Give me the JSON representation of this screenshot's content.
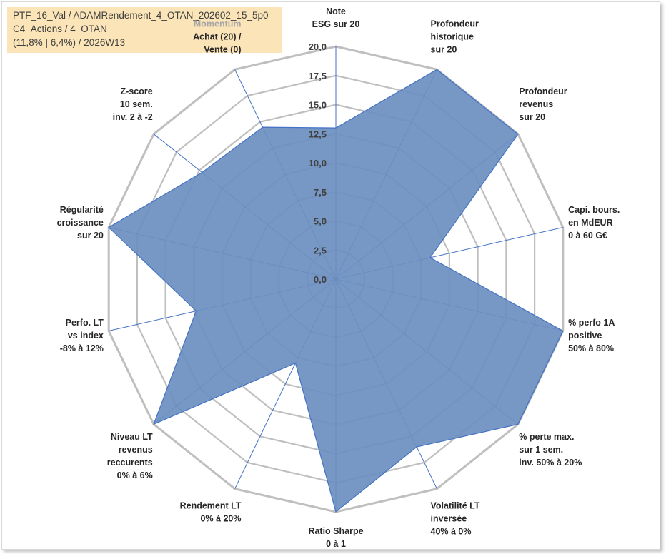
{
  "info": {
    "line1": "PTF_16_Val / ADAMRendement_4_OTAN_202602_15_5p0",
    "line2": "C4_Actions / 4_OTAN",
    "line3": "(11,8% | 6,4%) / 2026W13"
  },
  "chart_data": {
    "type": "radar",
    "rmin": 0,
    "rmax": 20,
    "ticks": [
      "0,0",
      "2,5",
      "5,0",
      "7,5",
      "10,0",
      "12,5",
      "15,0",
      "17,5",
      "20,0"
    ],
    "grid": true,
    "colors": {
      "fill": "#6b8fbf",
      "stroke": "#4472c4",
      "grid": "#bfbfbf",
      "spoke": "#4472c4"
    },
    "axes": [
      {
        "lines": [
          "Note",
          "ESG sur 20"
        ],
        "value": 13
      },
      {
        "lines": [
          "Profondeur",
          "historique",
          "sur 20"
        ],
        "value": 20
      },
      {
        "lines": [
          "Profondeur",
          "revenus",
          "sur 20"
        ],
        "value": 20
      },
      {
        "lines": [
          "Capi. bours.",
          "en MdEUR",
          "0 à 60 G€"
        ],
        "value": 8.3
      },
      {
        "lines": [
          "% perfo 1A",
          "positive",
          "50% à 80%"
        ],
        "value": 20
      },
      {
        "lines": [
          "% perte max.",
          "sur 1 sem.",
          "inv. 50% à 20%"
        ],
        "value": 20
      },
      {
        "lines": [
          "Volatilité LT",
          "inversée",
          "40% à 0%"
        ],
        "value": 16
      },
      {
        "lines": [
          "Ratio Sharpe",
          "0 à 1"
        ],
        "value": 20
      },
      {
        "lines": [
          "Rendement LT",
          "0% à 20%"
        ],
        "value": 8
      },
      {
        "lines": [
          "Niveau LT",
          "revenus",
          "reccurents",
          "0% à 6%"
        ],
        "value": 20
      },
      {
        "lines": [
          "Perfo. LT",
          "vs index",
          "-8% à 12%"
        ],
        "value": 12.3
      },
      {
        "lines": [
          "Régularité",
          "croissance",
          "sur 20"
        ],
        "value": 20
      },
      {
        "lines": [
          "Z-score",
          "10 sem.",
          "inv. 2 à -2"
        ],
        "value": 14.7
      },
      {
        "lines": [
          "Momentum",
          "Achat (20) /",
          "Vente (0)"
        ],
        "value": 14.5
      }
    ]
  }
}
